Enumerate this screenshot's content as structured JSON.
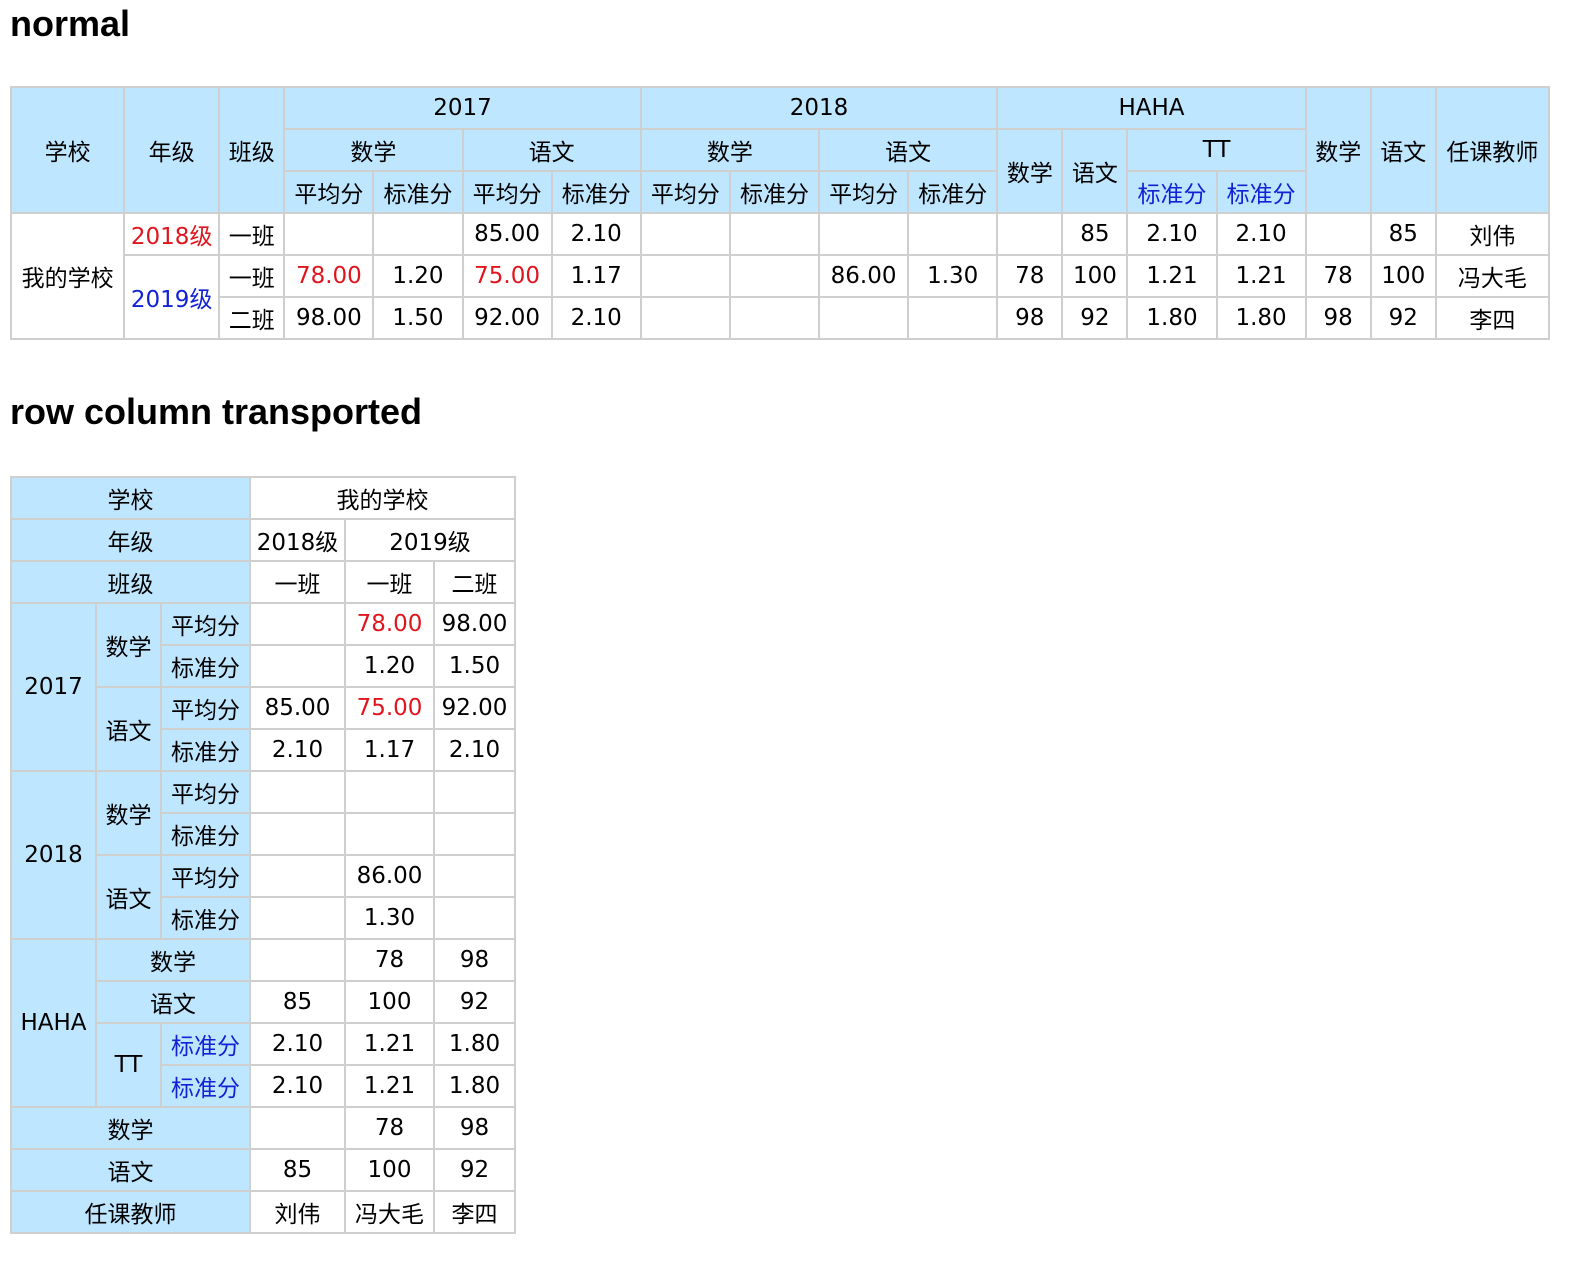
{
  "sections": {
    "normal_title": "normal",
    "transposed_title": "row column transported"
  },
  "colors": {
    "header_bg": "#bfe6ff",
    "border": "#cfcfcf",
    "highlight_red": "#e0161e",
    "highlight_blue": "#1122d4"
  },
  "labels": {
    "school": "学校",
    "grade": "年级",
    "class": "班级",
    "y2017": "2017",
    "y2018": "2018",
    "haha": "HAHA",
    "tt": "TT",
    "math": "数学",
    "chinese": "语文",
    "avg": "平均分",
    "std": "标准分",
    "teacher": "任课教师"
  },
  "school_name": "我的学校",
  "grades": [
    "2018级",
    "2019级"
  ],
  "rows": [
    {
      "grade": "2018级",
      "class": "一班",
      "y2017_math_avg": "",
      "y2017_math_std": "",
      "y2017_chinese_avg": "85.00",
      "y2017_chinese_std": "2.10",
      "y2018_math_avg": "",
      "y2018_math_std": "",
      "y2018_chinese_avg": "",
      "y2018_chinese_std": "",
      "haha_math": "",
      "haha_chinese": "85",
      "haha_tt_std1": "2.10",
      "haha_tt_std2": "2.10",
      "math": "",
      "chinese": "85",
      "teacher": "刘伟"
    },
    {
      "grade": "2019级",
      "class": "一班",
      "y2017_math_avg": "78.00",
      "y2017_math_std": "1.20",
      "y2017_chinese_avg": "75.00",
      "y2017_chinese_std": "1.17",
      "y2018_math_avg": "",
      "y2018_math_std": "",
      "y2018_chinese_avg": "86.00",
      "y2018_chinese_std": "1.30",
      "haha_math": "78",
      "haha_chinese": "100",
      "haha_tt_std1": "1.21",
      "haha_tt_std2": "1.21",
      "math": "78",
      "chinese": "100",
      "teacher": "冯大毛"
    },
    {
      "grade": "2019级",
      "class": "二班",
      "y2017_math_avg": "98.00",
      "y2017_math_std": "1.50",
      "y2017_chinese_avg": "92.00",
      "y2017_chinese_std": "2.10",
      "y2018_math_avg": "",
      "y2018_math_std": "",
      "y2018_chinese_avg": "",
      "y2018_chinese_std": "",
      "haha_math": "98",
      "haha_chinese": "92",
      "haha_tt_std1": "1.80",
      "haha_tt_std2": "1.80",
      "math": "98",
      "chinese": "92",
      "teacher": "李四"
    }
  ]
}
